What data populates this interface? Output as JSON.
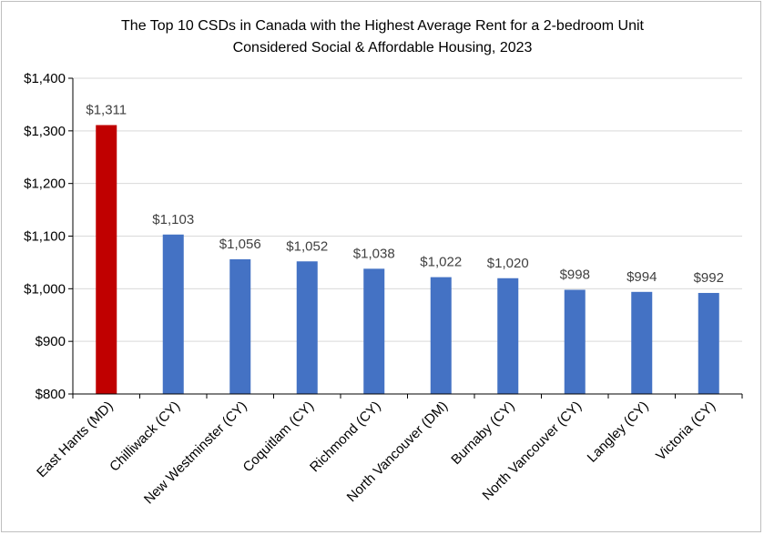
{
  "chart_data": {
    "type": "bar",
    "title_lines": [
      "The Top 10 CSDs in Canada with the Highest Average Rent for a 2-bedroom Unit",
      "Considered Social & Affordable Housing, 2023"
    ],
    "categories": [
      "East Hants (MD)",
      "Chilliwack (CY)",
      "New Westminster (CY)",
      "Coquitlam (CY)",
      "Richmond (CY)",
      "North Vancouver (DM)",
      "Burnaby (CY)",
      "North Vancouver (CY)",
      "Langley (CY)",
      "Victoria (CY)"
    ],
    "values": [
      1311,
      1103,
      1056,
      1052,
      1038,
      1022,
      1020,
      998,
      994,
      992
    ],
    "value_labels": [
      "$1,311",
      "$1,103",
      "$1,056",
      "$1,052",
      "$1,038",
      "$1,022",
      "$1,020",
      "$998",
      "$994",
      "$992"
    ],
    "colors": [
      "#c00000",
      "#4472c4",
      "#4472c4",
      "#4472c4",
      "#4472c4",
      "#4472c4",
      "#4472c4",
      "#4472c4",
      "#4472c4",
      "#4472c4"
    ],
    "ylim": [
      800,
      1400
    ],
    "yticks": [
      800,
      900,
      1000,
      1100,
      1200,
      1300,
      1400
    ],
    "ytick_labels": [
      "$800",
      "$900",
      "$1,000",
      "$1,100",
      "$1,200",
      "$1,300",
      "$1,400"
    ],
    "grid": true,
    "gridline_color": "#d9d9d9",
    "axis_color": "#000000",
    "xlabel": "",
    "ylabel": ""
  }
}
